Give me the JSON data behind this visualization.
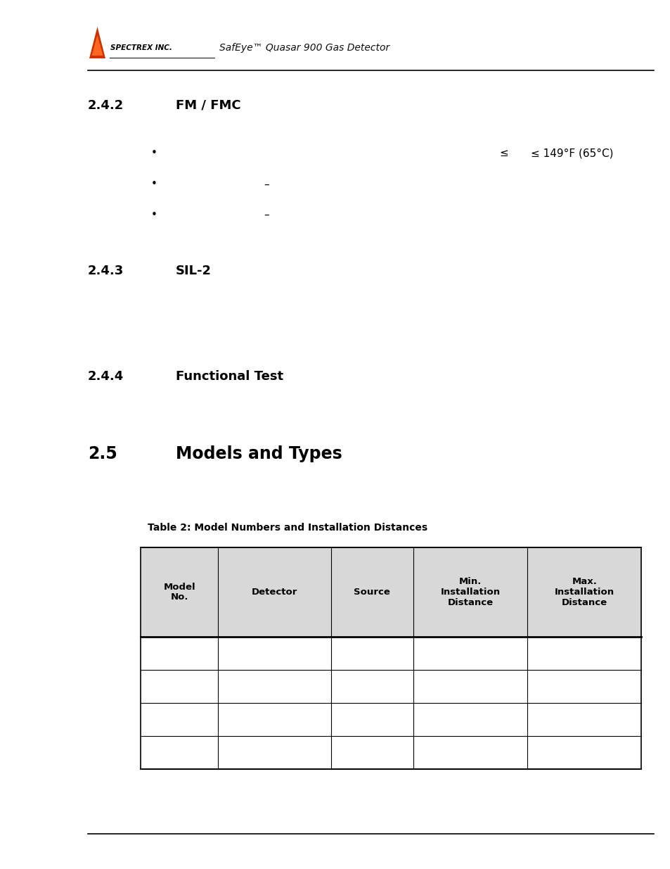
{
  "page_width": 9.54,
  "page_height": 12.35,
  "background_color": "#ffffff",
  "header_logo_text": "SPECTREX INC.",
  "header_subtitle": "SafEye™ Quasar 900 Gas Detector",
  "section_242_number": "2.4.2",
  "section_242_title": "FM / FMC",
  "section_243_number": "2.4.3",
  "section_243_title": "SIL-2",
  "section_244_number": "2.4.4",
  "section_244_title": "Functional Test",
  "section_25_number": "2.5",
  "section_25_title": "Models and Types",
  "bullet1_right_leq1": "≤",
  "bullet1_right_leq2": "≤ 149°F (65°C)",
  "bullet2_dash": "–",
  "bullet3_dash": "–",
  "table_caption": "Table 2: Model Numbers and Installation Distances",
  "table_headers": [
    "Model\nNo.",
    "Detector",
    "Source",
    "Min.\nInstallation\nDistance",
    "Max.\nInstallation\nDistance"
  ],
  "table_col_props": [
    0.155,
    0.225,
    0.165,
    0.228,
    0.228
  ],
  "table_data_rows": 4,
  "header_bg": "#d8d8d8",
  "logo_color": "#cc3300",
  "logo_highlight": "#ff6622",
  "text_color": "#000000"
}
